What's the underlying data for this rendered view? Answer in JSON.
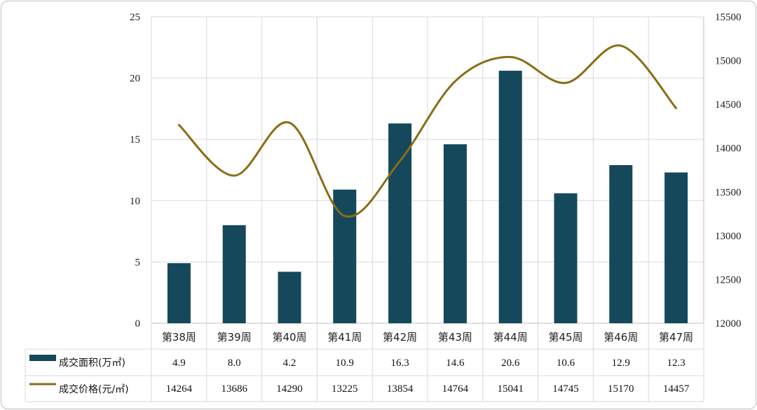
{
  "chart_data": {
    "type": "bar",
    "categories": [
      "第38周",
      "第39周",
      "第40周",
      "第41周",
      "第42周",
      "第43周",
      "第44周",
      "第45周",
      "第46周",
      "第47周"
    ],
    "series": [
      {
        "name": "成交面积(万㎡)",
        "type": "bar",
        "axis": "left",
        "values": [
          4.9,
          8.0,
          4.2,
          10.9,
          16.3,
          14.6,
          20.6,
          10.6,
          12.9,
          12.3
        ]
      },
      {
        "name": "成交价格(元/㎡)",
        "type": "line",
        "axis": "right",
        "values": [
          14264,
          13686,
          14290,
          13225,
          13854,
          14764,
          15041,
          14745,
          15170,
          14457
        ]
      }
    ],
    "y_left": {
      "lim": [
        0,
        25
      ],
      "ticks": [
        0,
        5,
        10,
        15,
        20,
        25
      ]
    },
    "y_right": {
      "lim": [
        12000,
        15500
      ],
      "ticks": [
        12000,
        12500,
        13000,
        13500,
        14000,
        14500,
        15000,
        15500
      ]
    },
    "data_table": [
      {
        "legend": "成交面积(万㎡)",
        "values": [
          "4.9",
          "8.0",
          "4.2",
          "10.9",
          "16.3",
          "14.6",
          "20.6",
          "10.6",
          "12.9",
          "12.3"
        ]
      },
      {
        "legend": "成交价格(元/㎡)",
        "values": [
          "14264",
          "13686",
          "14290",
          "13225",
          "13854",
          "14764",
          "15041",
          "14745",
          "15170",
          "14457"
        ]
      }
    ],
    "grid": true,
    "legend_position": "data-table-left"
  },
  "colors": {
    "bar": "#14485a",
    "line": "#8b6d16",
    "grid": "#d9d9d9",
    "axis": "#bfbfbf"
  }
}
